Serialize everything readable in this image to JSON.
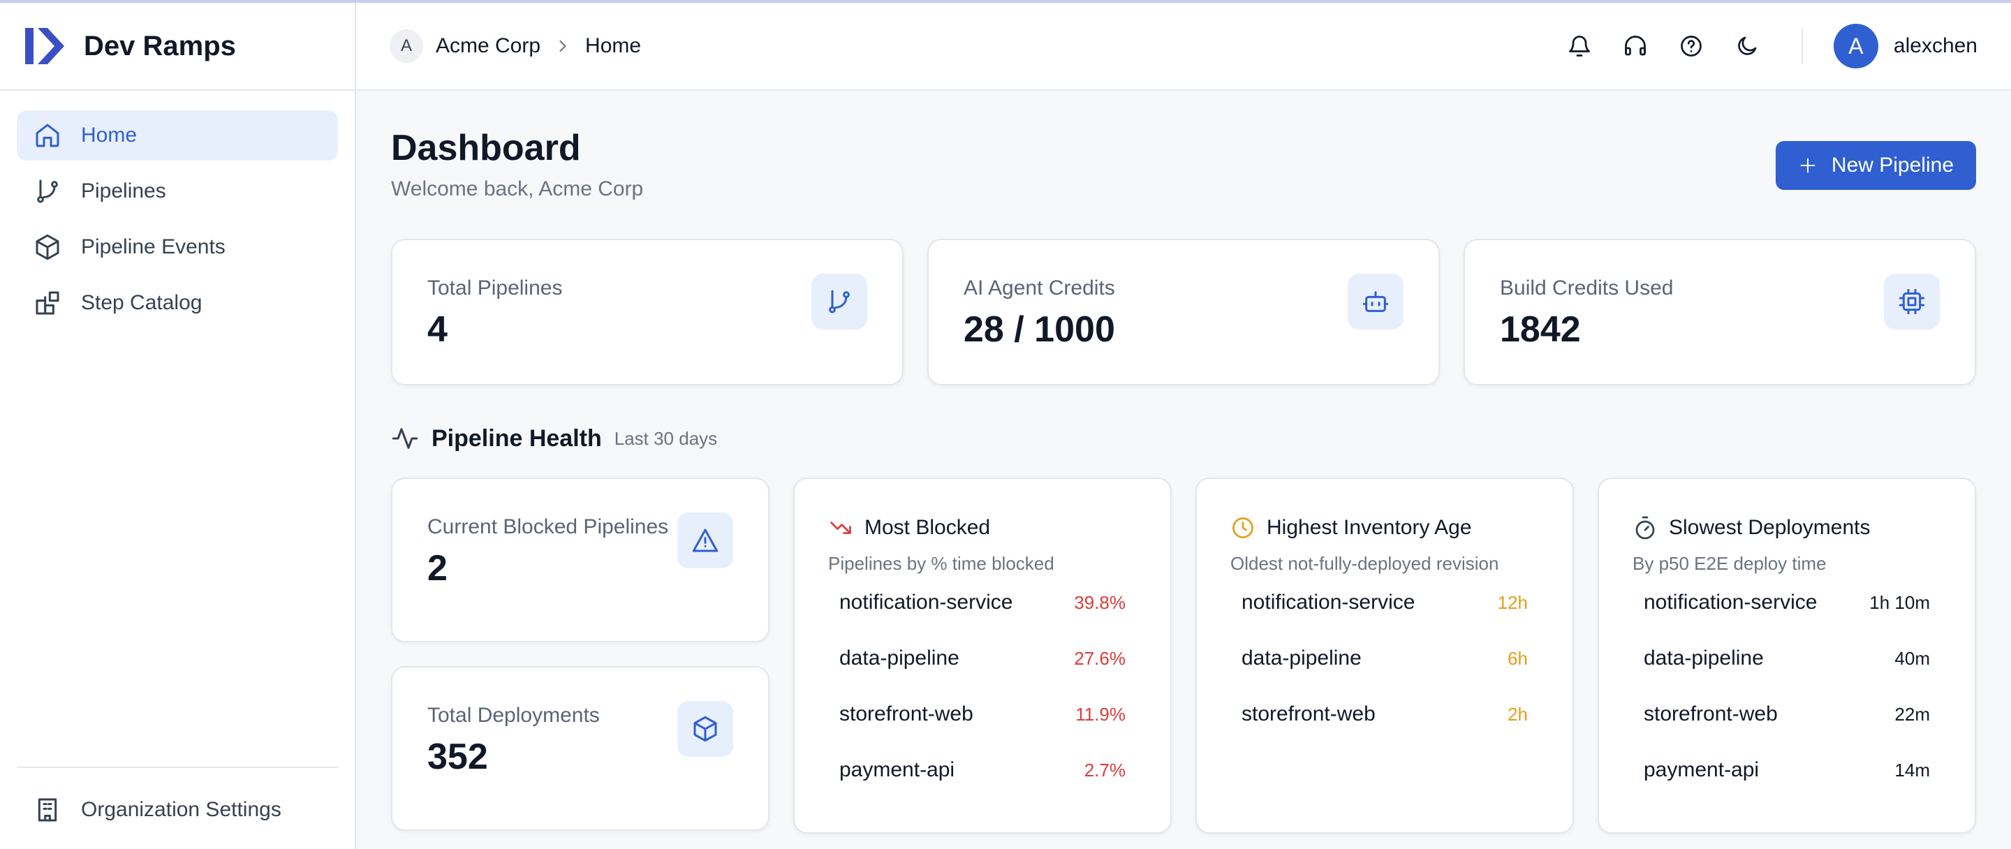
{
  "sidebar": {
    "brand": "Dev Ramps",
    "nav": [
      "Home",
      "Pipelines",
      "Pipeline Events",
      "Step Catalog"
    ],
    "footer": "Organization Settings"
  },
  "header": {
    "org_initial": "A",
    "breadcrumb": [
      "Acme Corp",
      "Home"
    ],
    "user_initial": "A",
    "user": "alexchen"
  },
  "page": {
    "title": "Dashboard",
    "subtitle": "Welcome back, Acme Corp",
    "button": "New Pipeline"
  },
  "stats": [
    {
      "label": "Total Pipelines",
      "value": 4
    },
    {
      "label": "AI Agent Credits",
      "value": "28 / 1000"
    },
    {
      "label": "Build Credits Used",
      "value": 1842
    }
  ],
  "health": {
    "title": "Pipeline Health",
    "period": "Last 30 days",
    "blocked": {
      "label": "Current Blocked Pipelines",
      "value": 2
    },
    "deployments": {
      "label": "Total Deployments",
      "value": 352
    },
    "lists": [
      {
        "title": "Most Blocked",
        "subtitle": "Pipelines by % time blocked",
        "rows": [
          {
            "name": "notification-service",
            "value": "39.8%"
          },
          {
            "name": "data-pipeline",
            "value": "27.6%"
          },
          {
            "name": "storefront-web",
            "value": "11.9%"
          },
          {
            "name": "payment-api",
            "value": "2.7%"
          }
        ]
      },
      {
        "title": "Highest Inventory Age",
        "subtitle": "Oldest not-fully-deployed revision",
        "rows": [
          {
            "name": "notification-service",
            "value": "12h"
          },
          {
            "name": "data-pipeline",
            "value": "6h"
          },
          {
            "name": "storefront-web",
            "value": "2h"
          }
        ]
      },
      {
        "title": "Slowest Deployments",
        "subtitle": "By p50 E2E deploy time",
        "rows": [
          {
            "name": "notification-service",
            "value": "1h 10m"
          },
          {
            "name": "data-pipeline",
            "value": "40m"
          },
          {
            "name": "storefront-web",
            "value": "22m"
          },
          {
            "name": "payment-api",
            "value": "14m"
          }
        ]
      }
    ]
  }
}
